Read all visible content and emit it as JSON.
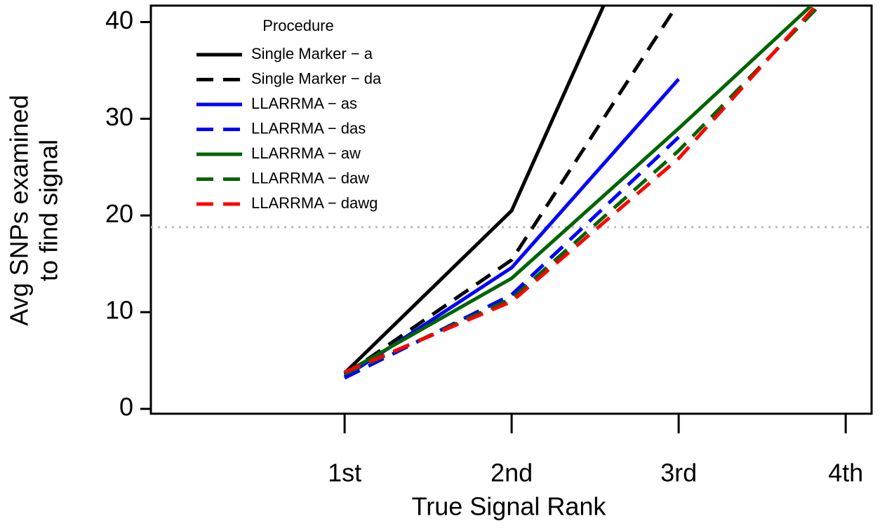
{
  "chart_data": {
    "type": "line",
    "xlabel": "True Signal Rank",
    "ylabel": [
      "Avg SNPs examined",
      "to find signal"
    ],
    "legend_title": "Procedure",
    "legend": "top-left",
    "x": [
      1,
      2,
      3,
      4
    ],
    "xlim": [
      -0.16,
      4.155
    ],
    "xticks": [
      {
        "value": 1,
        "label": "1st"
      },
      {
        "value": 2,
        "label": "2nd"
      },
      {
        "value": 3,
        "label": "3rd"
      },
      {
        "value": 4,
        "label": "4th"
      }
    ],
    "ylim": [
      -0.5,
      41.7
    ],
    "yticks": [
      0,
      10,
      20,
      30,
      40
    ],
    "hline": 18.8,
    "series": [
      {
        "name": "Single Marker − a",
        "color": "#000000",
        "dashed": false,
        "values": [
          3.7,
          20.5,
          59,
          null
        ]
      },
      {
        "name": "Single Marker − da",
        "color": "#000000",
        "dashed": true,
        "values": [
          3.5,
          15.4,
          42,
          null
        ]
      },
      {
        "name": "LLARRMA − as",
        "color": "#0000ff",
        "dashed": false,
        "values": [
          3.3,
          14.6,
          34.1,
          null
        ]
      },
      {
        "name": "LLARRMA − das",
        "color": "#0000ff",
        "dashed": true,
        "values": [
          3.2,
          11.8,
          28.1,
          null
        ]
      },
      {
        "name": "LLARRMA − aw",
        "color": "#006400",
        "dashed": false,
        "values": [
          3.7,
          13.5,
          29.0,
          45
        ]
      },
      {
        "name": "LLARRMA − daw",
        "color": "#006400",
        "dashed": true,
        "values": [
          3.6,
          11.4,
          26.7,
          44.5
        ]
      },
      {
        "name": "LLARRMA − dawg",
        "color": "#ff0000",
        "dashed": true,
        "values": [
          3.8,
          11.1,
          25.9,
          45.1
        ]
      }
    ]
  }
}
